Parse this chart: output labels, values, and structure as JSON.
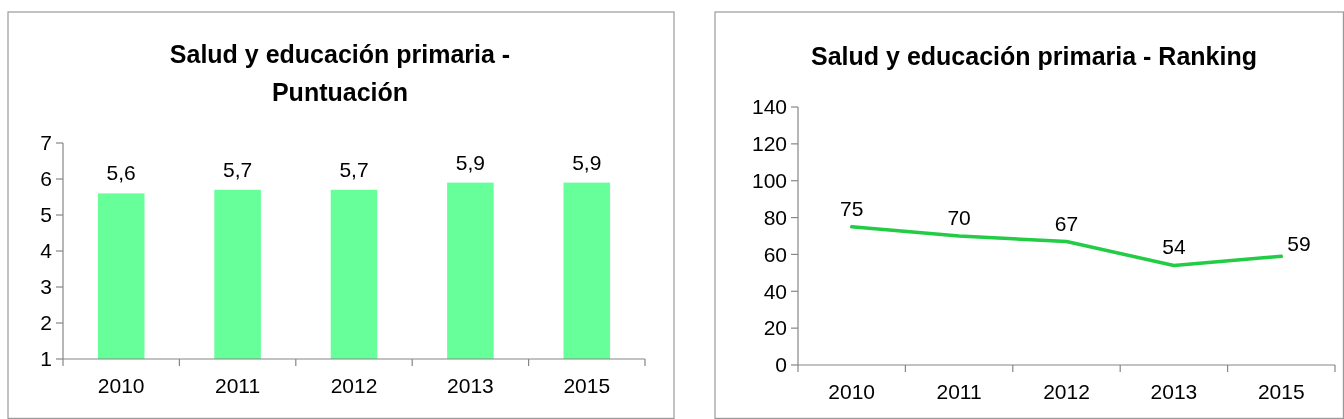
{
  "chart_data": [
    {
      "type": "bar",
      "title": "Salud y educación primaria - Puntuación",
      "categories": [
        "2010",
        "2011",
        "2012",
        "2013",
        "2015"
      ],
      "values": [
        5.6,
        5.7,
        5.7,
        5.9,
        5.9
      ],
      "color": "#66ff99",
      "value_labels": [
        "5,6",
        "5,7",
        "5,7",
        "5,9",
        "5,9"
      ],
      "ylim": [
        1,
        7
      ],
      "yticks": [
        1,
        2,
        3,
        4,
        5,
        6,
        7
      ]
    },
    {
      "type": "line",
      "title": "Salud y educación primaria - Ranking",
      "categories": [
        "2010",
        "2011",
        "2012",
        "2013",
        "2015"
      ],
      "values": [
        75,
        70,
        67,
        54,
        59
      ],
      "color": "#22cc44",
      "data_labels": true,
      "ylim": [
        0,
        140
      ],
      "yticks": [
        0,
        20,
        40,
        60,
        80,
        100,
        120,
        140
      ]
    }
  ]
}
